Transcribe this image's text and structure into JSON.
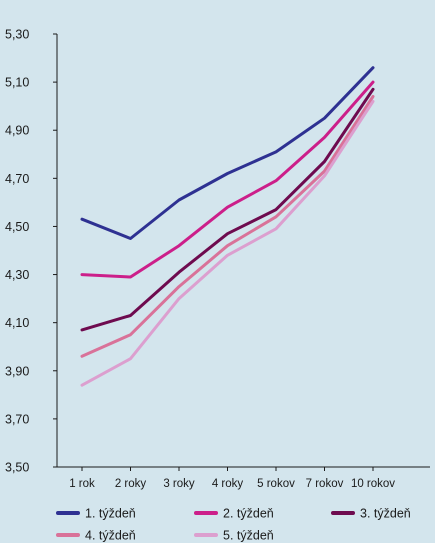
{
  "chart_data": {
    "type": "line",
    "title": "",
    "xlabel": "",
    "ylabel": "",
    "categories": [
      "1 rok",
      "2 roky",
      "3 roky",
      "4 roky",
      "5 rokov",
      "7 rokov",
      "10 rokov"
    ],
    "ylim": [
      3.5,
      5.3
    ],
    "yticks": [
      3.5,
      3.7,
      3.9,
      4.1,
      4.3,
      4.5,
      4.7,
      4.9,
      5.1,
      5.3
    ],
    "ytick_labels": [
      "3,50",
      "3,70",
      "3,90",
      "4,10",
      "4,30",
      "4,50",
      "4,70",
      "4,90",
      "5,10",
      "5,30"
    ],
    "grid": false,
    "legend_position": "bottom",
    "series": [
      {
        "name": "1. týždeň",
        "color": "#2e3192",
        "values": [
          4.53,
          4.45,
          4.61,
          4.72,
          4.81,
          4.95,
          5.16
        ]
      },
      {
        "name": "2. týždeň",
        "color": "#cc1f8a",
        "values": [
          4.3,
          4.29,
          4.42,
          4.58,
          4.69,
          4.87,
          5.1
        ]
      },
      {
        "name": "3. týždeň",
        "color": "#6e0b4f",
        "values": [
          4.07,
          4.13,
          4.31,
          4.47,
          4.57,
          4.77,
          5.07
        ]
      },
      {
        "name": "4. týždeň",
        "color": "#d97299",
        "values": [
          3.96,
          4.05,
          4.25,
          4.42,
          4.54,
          4.73,
          5.04
        ]
      },
      {
        "name": "5. týždeň",
        "color": "#dc9fcf",
        "values": [
          3.84,
          3.95,
          4.2,
          4.38,
          4.49,
          4.71,
          5.02
        ]
      }
    ]
  }
}
